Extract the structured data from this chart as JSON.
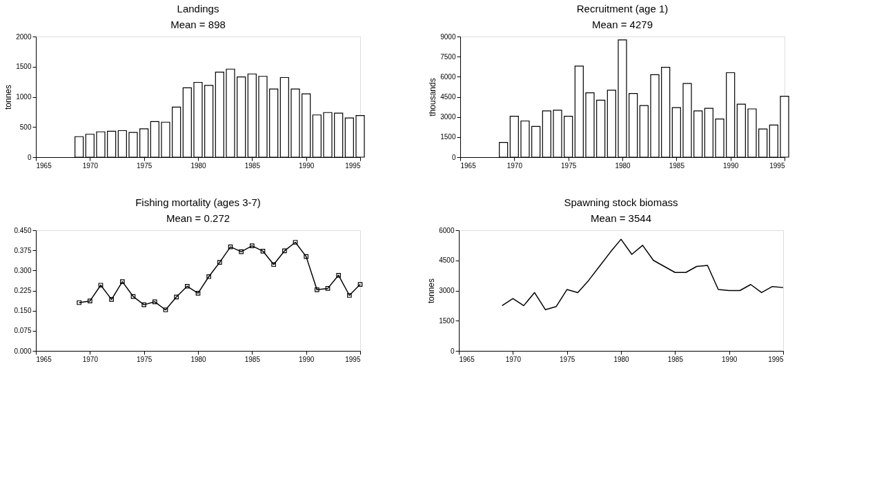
{
  "chart_data": [
    {
      "type": "bar",
      "title": "Landings",
      "subtitle": "Mean = 898",
      "ylabel": "tonnes",
      "x": [
        1969,
        1970,
        1971,
        1972,
        1973,
        1974,
        1975,
        1976,
        1977,
        1978,
        1979,
        1980,
        1981,
        1982,
        1983,
        1984,
        1985,
        1986,
        1987,
        1988,
        1989,
        1990,
        1991,
        1992,
        1993,
        1994,
        1995
      ],
      "series": [
        {
          "color": "#ffffff",
          "values": [
            340,
            380,
            420,
            430,
            440,
            410,
            470,
            590,
            580,
            830,
            1150,
            1240,
            1190,
            1410,
            1460,
            1330,
            1380,
            1340,
            1130,
            1320,
            1130,
            1050,
            700,
            740,
            730,
            650,
            690
          ]
        }
      ],
      "xlim": [
        1965,
        1995
      ],
      "xticks": [
        1965,
        1970,
        1975,
        1980,
        1985,
        1990,
        1995
      ],
      "ylim": [
        0,
        2000
      ],
      "yticks": [
        0,
        500,
        1000,
        1500,
        2000
      ],
      "grid": false,
      "legend": false
    },
    {
      "type": "bar",
      "title": "Recruitment (age 1)",
      "subtitle": "Mean = 4279",
      "ylabel": "thousands",
      "x": [
        1969,
        1970,
        1971,
        1972,
        1973,
        1974,
        1975,
        1976,
        1977,
        1978,
        1979,
        1980,
        1981,
        1982,
        1983,
        1984,
        1985,
        1986,
        1987,
        1988,
        1989,
        1990,
        1991,
        1992,
        1993,
        1994,
        1995
      ],
      "series": [
        {
          "color": "#ffffff",
          "values": [
            1100,
            3050,
            2700,
            2300,
            3450,
            3500,
            3050,
            6800,
            4800,
            4250,
            5000,
            8750,
            4750,
            3850,
            6150,
            6700,
            3700,
            5500,
            3450,
            3650,
            2850,
            6300,
            3950,
            3600,
            2100,
            2400,
            4550
          ]
        }
      ],
      "xlim": [
        1965,
        1995
      ],
      "xticks": [
        1965,
        1970,
        1975,
        1980,
        1985,
        1990,
        1995
      ],
      "ylim": [
        0,
        9000
      ],
      "yticks": [
        0,
        1500,
        3000,
        4500,
        6000,
        7500,
        9000
      ],
      "grid": false,
      "legend": false
    },
    {
      "type": "line",
      "title": "Fishing mortality (ages 3-7)",
      "subtitle": "Mean = 0.272",
      "x": [
        1969,
        1970,
        1971,
        1972,
        1973,
        1974,
        1975,
        1976,
        1977,
        1978,
        1979,
        1980,
        1981,
        1982,
        1983,
        1984,
        1985,
        1986,
        1987,
        1988,
        1989,
        1990,
        1991,
        1992,
        1993,
        1994,
        1995
      ],
      "series": [
        {
          "color": "#000000",
          "values": [
            0.18,
            0.186,
            0.245,
            0.192,
            0.258,
            0.203,
            0.172,
            0.183,
            0.153,
            0.201,
            0.241,
            0.215,
            0.277,
            0.33,
            0.388,
            0.37,
            0.392,
            0.372,
            0.322,
            0.373,
            0.405,
            0.352,
            0.228,
            0.233,
            0.282,
            0.207,
            0.248
          ]
        }
      ],
      "xlim": [
        1965,
        1995
      ],
      "xticks": [
        1965,
        1970,
        1975,
        1980,
        1985,
        1990,
        1995
      ],
      "ylim": [
        0,
        0.45
      ],
      "yticks": [
        {
          "value": 0,
          "label": "0.000"
        },
        {
          "value": 0.075,
          "label": "0.075"
        },
        {
          "value": 0.15,
          "label": "0.150"
        },
        {
          "value": 0.225,
          "label": "0.225"
        },
        {
          "value": 0.3,
          "label": "0.300"
        },
        {
          "value": 0.375,
          "label": "0.375"
        },
        {
          "value": 0.45,
          "label": "0.450"
        }
      ],
      "marker": "square",
      "line_style": "solid",
      "grid": false,
      "legend": false
    },
    {
      "type": "line",
      "title": "Spawning stock biomass",
      "subtitle": "Mean = 3544",
      "ylabel": "tonnes",
      "x": [
        1969,
        1970,
        1971,
        1972,
        1973,
        1974,
        1975,
        1976,
        1977,
        1978,
        1979,
        1980,
        1981,
        1982,
        1983,
        1984,
        1985,
        1986,
        1987,
        1988,
        1989,
        1990,
        1991,
        1992,
        1993,
        1994,
        1995
      ],
      "series": [
        {
          "color": "#000000",
          "values": [
            2250,
            2600,
            2250,
            2900,
            2050,
            2200,
            3050,
            2900,
            3500,
            4200,
            4900,
            5550,
            4800,
            5250,
            4500,
            4200,
            3900,
            3900,
            4200,
            4250,
            3050,
            3000,
            3000,
            3300,
            2900,
            3200,
            3150
          ]
        }
      ],
      "xlim": [
        1965,
        1995
      ],
      "xticks": [
        1965,
        1970,
        1975,
        1980,
        1985,
        1990,
        1995
      ],
      "ylim": [
        0,
        6000
      ],
      "yticks": [
        0,
        1500,
        3000,
        4500,
        6000
      ],
      "marker": "none",
      "line_style": "solid",
      "grid": false,
      "legend": false
    }
  ]
}
